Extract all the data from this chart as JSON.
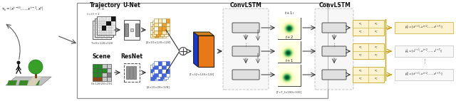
{
  "bg_color": "#ffffff",
  "label_trajectory": "Trajectory",
  "label_scene": "Scene",
  "label_unet": "U-Net",
  "label_resnet": "ResNet",
  "label_convlstm1": "ConvLSTM",
  "label_convlstm2": "ConvLSTM",
  "dim_traj": "T×H×128×128",
  "dim_scene": "H×128/28×291",
  "dim_unet_out": "[4×10×128×128]",
  "dim_resnet_out": "[4×10×28×128]",
  "dim_concat": "[T×32×128×128]",
  "dim_heatmap": "[T×T_f×100×100]",
  "t_labels": [
    "t+1_f",
    "t+2",
    "t+1"
  ],
  "out_labels1": "$\\hat{p}_k^1=[x^{t+1},x^{t+2},\\ldots,x^{t+T_f}]$",
  "out_labels2": "$\\hat{p}_k^j=[x^{t+1},x^{t+2},\\ldots,x^{t+T_f}]$",
  "out_labels3": "$\\hat{p}_k^S=[x^{t+1},x^{t+2},\\ldots,x^{t+T_f}]$",
  "scene_colors": [
    [
      "#8B4513",
      "#8B4513",
      "#c8c8c8",
      "#c8c8c8"
    ],
    [
      "#228B22",
      "#228B22",
      "#c8c8c8",
      "#808080"
    ],
    [
      "#228B22",
      "#228B22",
      "#228B22",
      "#c8c8c8"
    ],
    [
      "#228B22",
      "#228B22",
      "#c8c8c8",
      "#c8c8c8"
    ]
  ],
  "unet_colors": [
    [
      "#fce8b0",
      "#f0a030",
      "#fce8b0",
      "#f8f8e8"
    ],
    [
      "#f8f8e8",
      "#f0a030",
      "#f0a030",
      "#fce8b0"
    ],
    [
      "#fce8b0",
      "#f8f8e8",
      "#f0a030",
      "#fce8b0"
    ],
    [
      "#f8f8e8",
      "#fce8b0",
      "#f8f8e8",
      "#f0a030"
    ]
  ],
  "resnet_colors": [
    [
      "#4466dd",
      "#ffffff",
      "#4466dd",
      "#ffffff"
    ],
    [
      "#ffffff",
      "#4466dd",
      "#ffffff",
      "#4466dd"
    ],
    [
      "#4466dd",
      "#ffffff",
      "#4466dd",
      "#ffffff"
    ],
    [
      "#ffffff",
      "#4466dd",
      "#ffffff",
      "#4466dd"
    ]
  ],
  "yellow_fill": "#fdf3d0",
  "yellow_edge": "#c8a820",
  "gold_line": "#c8a010"
}
